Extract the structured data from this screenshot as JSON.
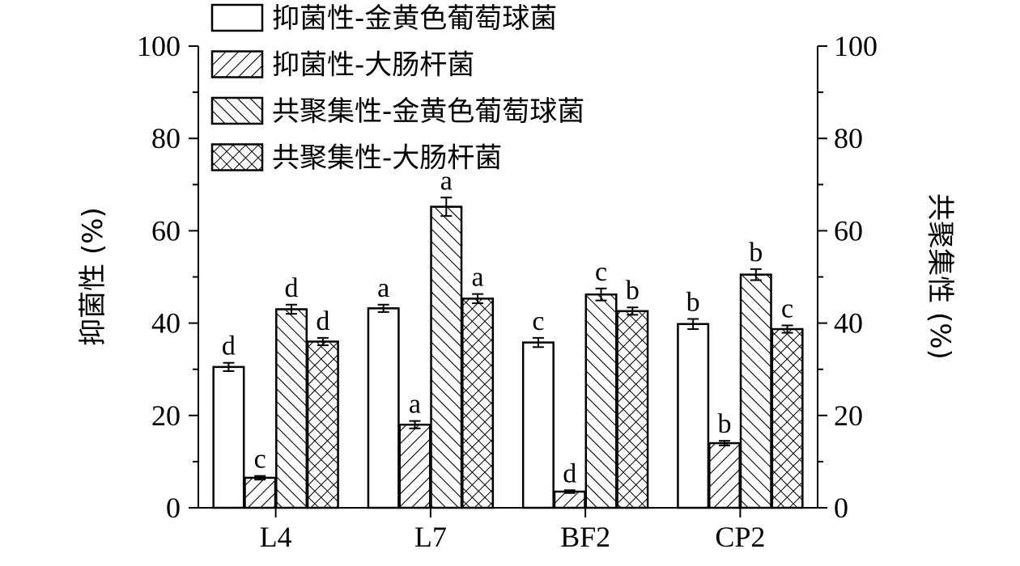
{
  "chart_data": {
    "type": "bar",
    "categories": [
      "L4",
      "L7",
      "BF2",
      "CP2"
    ],
    "ylabel_left": "抑菌性 (%)",
    "ylabel_right": "共聚集性 (%)",
    "ylim": [
      0,
      100
    ],
    "yticks": [
      0,
      20,
      40,
      60,
      80,
      100
    ],
    "grid": false,
    "legend_position": "top-left",
    "series": [
      {
        "name": "抑菌性-金黄色葡萄球菌",
        "pattern": "none",
        "axis": "left",
        "values": [
          30.5,
          43.2,
          35.8,
          39.8
        ],
        "errors": [
          0.9,
          0.8,
          1.0,
          1.1
        ],
        "letters": [
          "d",
          "a",
          "c",
          "b"
        ]
      },
      {
        "name": "抑菌性-大肠杆菌",
        "pattern": "diagonal",
        "axis": "left",
        "values": [
          6.5,
          18.0,
          3.5,
          14.0
        ],
        "errors": [
          0.4,
          0.8,
          0.3,
          0.5
        ],
        "letters": [
          "c",
          "a",
          "d",
          "b"
        ]
      },
      {
        "name": "共聚集性-金黄色葡萄球菌",
        "pattern": "backdiagonal",
        "axis": "right",
        "values": [
          43.0,
          65.2,
          46.2,
          50.5
        ],
        "errors": [
          1.0,
          2.0,
          1.3,
          1.2
        ],
        "letters": [
          "d",
          "a",
          "c",
          "b"
        ]
      },
      {
        "name": "共聚集性-大肠杆菌",
        "pattern": "crosshatch",
        "axis": "right",
        "values": [
          36.0,
          45.3,
          42.6,
          38.7
        ],
        "errors": [
          0.8,
          1.0,
          0.8,
          0.8
        ],
        "letters": [
          "d",
          "a",
          "b",
          "c"
        ]
      }
    ]
  }
}
